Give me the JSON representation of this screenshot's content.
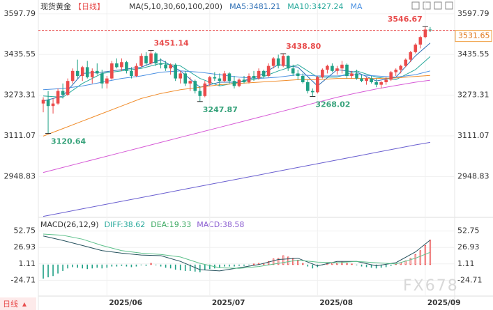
{
  "chart_data": [
    {
      "type": "candlestick",
      "title": "现货黄金",
      "period": "【日线】",
      "ma_title": "MA(5,10,30,60,100,200)",
      "legend_labels": [
        "MA5:3481.21",
        "MA10:3427.24",
        "MA"
      ],
      "up_color": "#eb4b4b",
      "down_color": "#1fa085",
      "grid": true,
      "xlim": [
        -1,
        84
      ],
      "ylim": [
        2786,
        3639
      ],
      "yticks": [
        3597.79,
        3435.55,
        3273.31,
        3111.07,
        2948.83
      ],
      "xticks": [
        {
          "value": 13,
          "label": "2025/06"
        },
        {
          "value": 34,
          "label": "2025/07"
        },
        {
          "value": 56,
          "label": "2025/08"
        },
        {
          "value": 78,
          "label": "2025/09"
        }
      ],
      "last_price": 3531.65,
      "ohlc": [
        [
          3240,
          3265,
          3205,
          3255
        ],
        [
          3255,
          3290,
          3120.64,
          3230
        ],
        [
          3230,
          3260,
          3200,
          3240
        ],
        [
          3240,
          3300,
          3235,
          3290
        ],
        [
          3290,
          3320,
          3260,
          3275
        ],
        [
          3275,
          3340,
          3270,
          3330
        ],
        [
          3330,
          3380,
          3320,
          3370
        ],
        [
          3370,
          3415,
          3340,
          3350
        ],
        [
          3350,
          3390,
          3330,
          3385
        ],
        [
          3385,
          3410,
          3340,
          3345
        ],
        [
          3345,
          3380,
          3320,
          3370
        ],
        [
          3370,
          3400,
          3355,
          3360
        ],
        [
          3360,
          3375,
          3300,
          3320
        ],
        [
          3320,
          3350,
          3300,
          3340
        ],
        [
          3340,
          3410,
          3335,
          3400
        ],
        [
          3400,
          3420,
          3380,
          3385
        ],
        [
          3385,
          3420,
          3370,
          3405
        ],
        [
          3405,
          3410,
          3360,
          3370
        ],
        [
          3370,
          3385,
          3340,
          3350
        ],
        [
          3350,
          3400,
          3345,
          3390
        ],
        [
          3390,
          3440,
          3385,
          3430
        ],
        [
          3430,
          3445,
          3390,
          3400
        ],
        [
          3400,
          3451.14,
          3395,
          3440
        ],
        [
          3440,
          3445,
          3390,
          3400
        ],
        [
          3400,
          3420,
          3380,
          3395
        ],
        [
          3395,
          3410,
          3370,
          3380
        ],
        [
          3380,
          3400,
          3355,
          3395
        ],
        [
          3395,
          3400,
          3330,
          3340
        ],
        [
          3340,
          3370,
          3320,
          3360
        ],
        [
          3360,
          3370,
          3310,
          3320
        ],
        [
          3320,
          3345,
          3290,
          3330
        ],
        [
          3330,
          3335,
          3280,
          3290
        ],
        [
          3290,
          3310,
          3247.87,
          3270
        ],
        [
          3270,
          3330,
          3265,
          3320
        ],
        [
          3320,
          3350,
          3310,
          3345
        ],
        [
          3345,
          3365,
          3330,
          3340
        ],
        [
          3340,
          3360,
          3310,
          3330
        ],
        [
          3330,
          3370,
          3325,
          3360
        ],
        [
          3360,
          3365,
          3320,
          3330
        ],
        [
          3330,
          3350,
          3300,
          3310
        ],
        [
          3310,
          3340,
          3305,
          3335
        ],
        [
          3335,
          3350,
          3320,
          3325
        ],
        [
          3325,
          3360,
          3320,
          3350
        ],
        [
          3350,
          3370,
          3330,
          3340
        ],
        [
          3340,
          3380,
          3335,
          3370
        ],
        [
          3370,
          3375,
          3340,
          3350
        ],
        [
          3350,
          3400,
          3345,
          3390
        ],
        [
          3390,
          3425,
          3380,
          3420
        ],
        [
          3420,
          3435,
          3380,
          3390
        ],
        [
          3390,
          3438.8,
          3385,
          3430
        ],
        [
          3430,
          3432,
          3370,
          3380
        ],
        [
          3380,
          3395,
          3350,
          3360
        ],
        [
          3360,
          3375,
          3335,
          3350
        ],
        [
          3350,
          3360,
          3320,
          3325
        ],
        [
          3325,
          3335,
          3280,
          3290
        ],
        [
          3290,
          3300,
          3268.02,
          3285
        ],
        [
          3285,
          3350,
          3280,
          3345
        ],
        [
          3345,
          3380,
          3340,
          3375
        ],
        [
          3375,
          3395,
          3360,
          3390
        ],
        [
          3390,
          3400,
          3365,
          3370
        ],
        [
          3370,
          3390,
          3355,
          3380
        ],
        [
          3380,
          3410,
          3360,
          3395
        ],
        [
          3395,
          3400,
          3340,
          3350
        ],
        [
          3350,
          3370,
          3340,
          3360
        ],
        [
          3360,
          3375,
          3335,
          3340
        ],
        [
          3340,
          3355,
          3325,
          3330
        ],
        [
          3330,
          3345,
          3315,
          3340
        ],
        [
          3340,
          3350,
          3320,
          3325
        ],
        [
          3325,
          3340,
          3305,
          3315
        ],
        [
          3315,
          3330,
          3300,
          3325
        ],
        [
          3325,
          3345,
          3315,
          3335
        ],
        [
          3335,
          3370,
          3330,
          3365
        ],
        [
          3365,
          3380,
          3350,
          3375
        ],
        [
          3375,
          3395,
          3360,
          3390
        ],
        [
          3390,
          3420,
          3385,
          3415
        ],
        [
          3415,
          3450,
          3405,
          3445
        ],
        [
          3445,
          3480,
          3440,
          3475
        ],
        [
          3475,
          3510,
          3460,
          3505
        ],
        [
          3505,
          3546.67,
          3500,
          3535
        ],
        [
          3535,
          3545,
          3525,
          3531.65
        ]
      ],
      "ma_x": [
        0,
        4,
        8,
        12,
        16,
        20,
        24,
        28,
        32,
        36,
        40,
        44,
        48,
        52,
        56,
        60,
        64,
        68,
        72,
        76,
        79
      ],
      "series": [
        {
          "name": "MA5",
          "color": "#2e6fb5",
          "values": [
            3250,
            3270,
            3360,
            3365,
            3375,
            3385,
            3415,
            3370,
            3305,
            3325,
            3325,
            3350,
            3395,
            3385,
            3310,
            3375,
            3365,
            3330,
            3345,
            3430,
            3481.21
          ]
        },
        {
          "name": "MA10",
          "color": "#25a89a",
          "values": [
            3270,
            3265,
            3320,
            3360,
            3370,
            3380,
            3400,
            3390,
            3340,
            3310,
            3325,
            3340,
            3370,
            3395,
            3345,
            3345,
            3370,
            3345,
            3335,
            3375,
            3427.24
          ]
        },
        {
          "name": "MA30",
          "color": "#4a90e2",
          "values": [
            3295,
            3300,
            3310,
            3325,
            3340,
            3350,
            3365,
            3370,
            3365,
            3355,
            3345,
            3340,
            3345,
            3355,
            3350,
            3350,
            3355,
            3350,
            3345,
            3355,
            3370
          ]
        },
        {
          "name": "MA60",
          "color": "#f08c2a",
          "values": [
            3110,
            3140,
            3170,
            3200,
            3230,
            3260,
            3280,
            3295,
            3305,
            3315,
            3320,
            3325,
            3330,
            3335,
            3335,
            3340,
            3340,
            3340,
            3342,
            3348,
            3352
          ]
        },
        {
          "name": "MA100",
          "color": "#d65ad6",
          "values": [
            2965,
            2985,
            3005,
            3025,
            3045,
            3065,
            3085,
            3105,
            3125,
            3145,
            3165,
            3185,
            3205,
            3225,
            3245,
            3265,
            3282,
            3298,
            3312,
            3325,
            3333
          ]
        },
        {
          "name": "MA200",
          "color": "#6a5fd0",
          "values": [
            2790,
            2805,
            2820,
            2835,
            2850,
            2865,
            2880,
            2895,
            2910,
            2925,
            2940,
            2955,
            2970,
            2985,
            3000,
            3015,
            3030,
            3045,
            3060,
            3075,
            3085
          ]
        }
      ],
      "annotations": [
        {
          "label": "3120.64",
          "x": 1,
          "y": 3120.64,
          "color": "#36a27a"
        },
        {
          "label": "3451.14",
          "x": 22,
          "y": 3451.14,
          "color": "#e84d4d"
        },
        {
          "label": "3247.87",
          "x": 32,
          "y": 3247.87,
          "color": "#36a27a"
        },
        {
          "label": "3438.80",
          "x": 49,
          "y": 3438.8,
          "color": "#e84d4d"
        },
        {
          "label": "3268.02",
          "x": 55,
          "y": 3268.02,
          "color": "#36a27a"
        },
        {
          "label": "3546.67",
          "x": 78,
          "y": 3546.67,
          "color": "#e84d4d"
        }
      ]
    },
    {
      "type": "macd",
      "title": "MACD(26,12,9)",
      "legend_labels": [
        "DIFF:38.62",
        "DEA:19.33",
        "MACD:38.58"
      ],
      "legend_colors": [
        "#25a89a",
        "#3aa860",
        "#8a5cd0"
      ],
      "xlim": [
        -1,
        84
      ],
      "ylim": [
        -49.5,
        71
      ],
      "yticks": [
        52.75,
        26.93,
        1.11,
        -24.71
      ],
      "up_color": "#eb4b4b",
      "down_color": "#1fa085",
      "histogram": [
        -22,
        -20,
        -18,
        -14,
        -10,
        -6,
        -4,
        -5,
        -6,
        -7,
        -6,
        -5,
        -6,
        -5,
        -3,
        -3,
        -2,
        -3,
        -4,
        -3,
        -1,
        -2,
        2,
        -1,
        -3,
        -5,
        -6,
        -8,
        -9,
        -10,
        -10,
        -11,
        -12,
        -9,
        -7,
        -6,
        -5,
        -3,
        -3,
        -3,
        -2,
        -2,
        -1,
        1,
        2,
        2,
        5,
        9,
        10,
        14,
        12,
        10,
        6,
        2,
        -3,
        -6,
        -4,
        -1,
        2,
        3,
        3,
        4,
        2,
        1,
        -1,
        -3,
        -4,
        -5,
        -6,
        -5,
        -4,
        -2,
        1,
        3,
        6,
        10,
        16,
        22,
        30,
        38.58
      ],
      "line_x": [
        0,
        4,
        8,
        12,
        16,
        20,
        24,
        28,
        32,
        36,
        40,
        44,
        48,
        52,
        56,
        60,
        64,
        68,
        72,
        76,
        79
      ],
      "series": [
        {
          "name": "DIFF",
          "color": "#24505c",
          "values": [
            45,
            38,
            30,
            22,
            18,
            15,
            14,
            5,
            -8,
            -10,
            -5,
            0,
            8,
            10,
            -2,
            5,
            5,
            -2,
            3,
            20,
            38.62
          ]
        },
        {
          "name": "DEA",
          "color": "#5cc08a",
          "values": [
            48,
            46,
            40,
            30,
            22,
            18,
            16,
            12,
            2,
            -5,
            -6,
            -3,
            2,
            7,
            4,
            3,
            5,
            3,
            1,
            10,
            19.33
          ]
        }
      ]
    }
  ],
  "footer": {
    "period": "日线",
    "watermark": "FX678"
  }
}
